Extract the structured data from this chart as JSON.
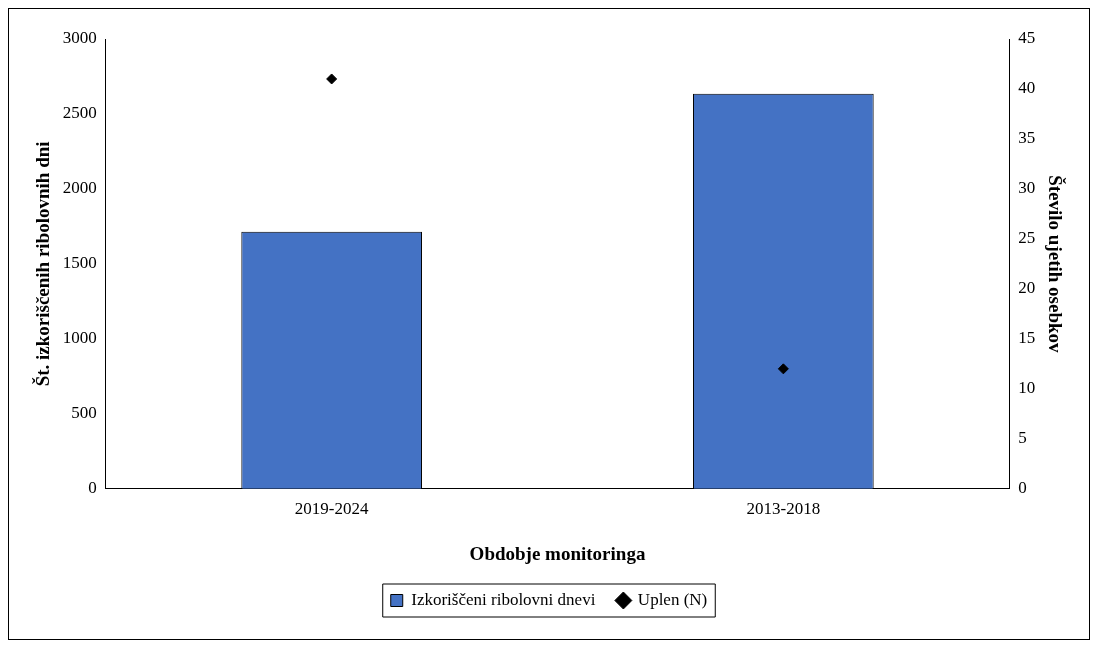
{
  "chart_data": {
    "type": "bar",
    "xlabel": "Obdobje monitoringa",
    "ylabel": "Št. izkoriščenih ribolovnih dni",
    "y2label": "Število ujetih osebkov",
    "categories": [
      "2019-2024",
      "2013-2018"
    ],
    "series": [
      {
        "name": "Izkoriščeni ribolovni dnevi",
        "color": "#4472c4",
        "values": [
          1715,
          2635
        ]
      },
      {
        "name": "Uplen (N)",
        "type": "scatter",
        "axis": "y2",
        "color": "#000000",
        "x": [
          "2019-2024",
          "2013-2018"
        ],
        "values": [
          41,
          12
        ]
      }
    ],
    "ylim": [
      0,
      3000
    ],
    "yticks": [
      0,
      500,
      1000,
      1500,
      2000,
      2500,
      3000
    ],
    "y2lim": [
      0,
      45
    ],
    "y2ticks": [
      0,
      5,
      10,
      15,
      20,
      25,
      30,
      35,
      40,
      45
    ],
    "grid": false,
    "legend": "bottom",
    "marker": "diamond"
  }
}
